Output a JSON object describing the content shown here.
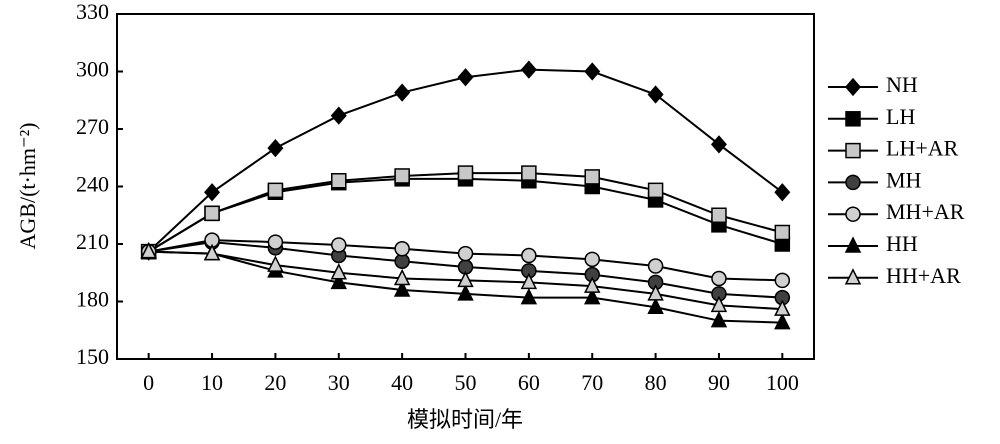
{
  "chart_data": {
    "type": "line",
    "x_label": "模拟时间/年",
    "y_label": "AGB/(t·hm⁻²)",
    "x": [
      0,
      10,
      20,
      30,
      40,
      50,
      60,
      70,
      80,
      90,
      100
    ],
    "xlim": [
      -5,
      105
    ],
    "xticks": [
      0,
      10,
      20,
      30,
      40,
      50,
      60,
      70,
      80,
      90,
      100
    ],
    "ylim": [
      150,
      330
    ],
    "yticks": [
      150,
      180,
      210,
      240,
      270,
      300,
      330
    ],
    "legend": "right",
    "series": [
      {
        "name": "NH",
        "color": "#000000",
        "marker": "diamond",
        "values": [
          206,
          237,
          260,
          277,
          289,
          297,
          301,
          300,
          288,
          262,
          237
        ]
      },
      {
        "name": "LH",
        "color": "#000000",
        "marker": "square",
        "values": [
          206,
          226,
          237,
          242,
          244,
          244,
          243,
          240,
          233,
          220,
          210
        ]
      },
      {
        "name": "LH+AR",
        "color": "#c8c8c8",
        "marker": "square",
        "values": [
          206,
          226,
          238,
          243,
          245.5,
          247,
          247,
          245,
          238,
          225,
          216
        ]
      },
      {
        "name": "MH",
        "color": "#404040",
        "marker": "circle",
        "values": [
          206,
          211,
          208,
          204,
          201,
          198,
          196,
          194,
          190,
          184,
          182
        ]
      },
      {
        "name": "MH+AR",
        "color": "#d0d0d0",
        "marker": "circle",
        "values": [
          206,
          212,
          211,
          209.5,
          207.5,
          205,
          204,
          202,
          198.5,
          192,
          191
        ]
      },
      {
        "name": "HH",
        "color": "#000000",
        "marker": "triangle",
        "values": [
          206,
          205,
          196,
          190,
          186,
          184,
          182,
          182,
          177,
          170,
          169
        ]
      },
      {
        "name": "HH+AR",
        "color": "#d0d0d0",
        "marker": "triangle",
        "values": [
          206,
          205,
          199,
          195,
          192,
          191,
          190,
          188,
          184,
          178,
          176
        ]
      }
    ]
  }
}
